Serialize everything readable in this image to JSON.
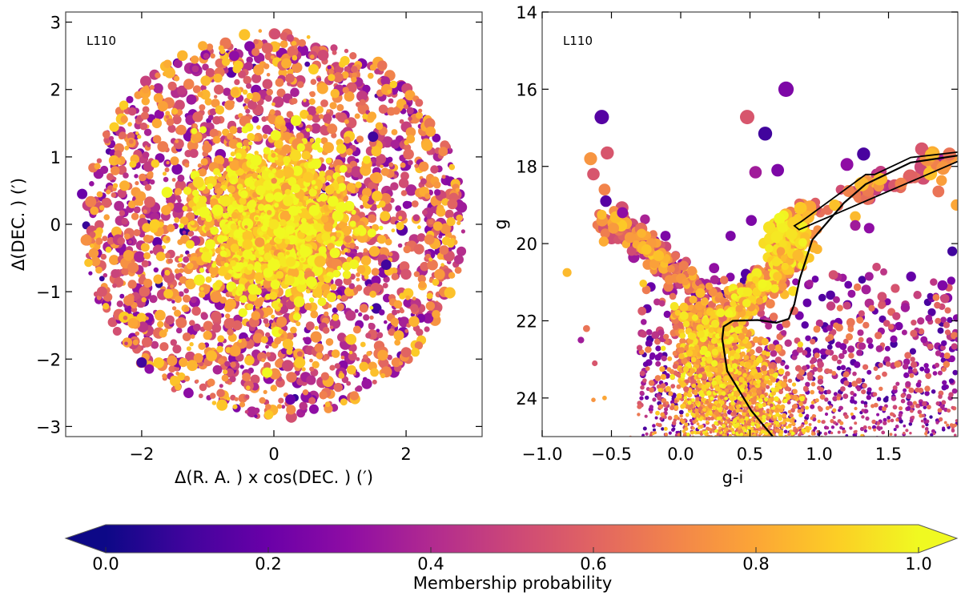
{
  "chart_data": [
    {
      "type": "scatter",
      "panel_label": "L110",
      "xlabel": "Δ(R. A. ) x cos(DEC. ) (′)",
      "ylabel": "Δ(DEC. ) (′)",
      "xlim": [
        -3.15,
        3.15
      ],
      "ylim": [
        -3.15,
        3.15
      ],
      "xticks": [
        "−2",
        "0",
        "2"
      ],
      "xtick_values": [
        -2,
        0,
        2
      ],
      "yticks": [
        "−3",
        "−2",
        "−1",
        "0",
        "1",
        "2",
        "3"
      ],
      "ytick_values": [
        -3,
        -2,
        -1,
        0,
        1,
        2,
        3
      ],
      "grid": false,
      "color_by": "membership probability",
      "point_format": [
        "x",
        "y",
        "p"
      ],
      "points": [
        [
          -2.0,
          -2.05,
          0.1
        ],
        [
          0.25,
          -2.6,
          0.2
        ],
        [
          -0.1,
          -2.2,
          1.0
        ],
        [
          -1.8,
          0.0,
          0.9
        ],
        [
          -2.9,
          0.45,
          0.2
        ],
        [
          1.7,
          -0.6,
          0.1
        ],
        [
          1.5,
          1.3,
          0.1
        ],
        [
          -1.4,
          1.4,
          0.7
        ],
        [
          2.0,
          -1.9,
          0.6
        ],
        [
          -0.6,
          2.5,
          0.3
        ],
        [
          0.6,
          2.3,
          0.9
        ],
        [
          2.7,
          0.3,
          0.6
        ],
        [
          -2.6,
          -1.0,
          0.55
        ],
        [
          0.0,
          0.0,
          0.95
        ],
        [
          0.3,
          0.2,
          1.0
        ],
        [
          -0.4,
          -0.3,
          0.9
        ]
      ]
    },
    {
      "type": "scatter",
      "panel_label": "L110",
      "xlabel": "g-i",
      "ylabel": "g",
      "xlim": [
        -1.0,
        2.0
      ],
      "ylim": [
        25,
        14
      ],
      "y_inverted": true,
      "xticks": [
        "−1.0",
        "−0.5",
        "0.0",
        "0.5",
        "1.0",
        "1.5"
      ],
      "xtick_values": [
        -1.0,
        -0.5,
        0.0,
        0.5,
        1.0,
        1.5
      ],
      "yticks": [
        "14",
        "16",
        "18",
        "20",
        "22",
        "24"
      ],
      "ytick_values": [
        14,
        16,
        18,
        20,
        22,
        24
      ],
      "grid": false,
      "color_by": "membership probability",
      "point_format": [
        "g-i",
        "g",
        "p"
      ],
      "points": [
        [
          -0.57,
          16.72,
          0.15
        ],
        [
          0.76,
          16.0,
          0.25
        ],
        [
          0.48,
          16.72,
          0.55
        ],
        [
          0.61,
          17.15,
          0.1
        ],
        [
          1.32,
          17.68,
          0.12
        ],
        [
          -0.65,
          17.8,
          0.75
        ],
        [
          -0.53,
          17.65,
          0.55
        ],
        [
          -0.63,
          18.2,
          0.55
        ],
        [
          -0.55,
          18.6,
          0.7
        ],
        [
          -0.54,
          18.9,
          0.15
        ],
        [
          0.54,
          18.15,
          0.35
        ],
        [
          0.7,
          18.1,
          0.25
        ],
        [
          1.2,
          17.95,
          0.3
        ],
        [
          1.74,
          17.55,
          0.55
        ],
        [
          1.81,
          17.7,
          0.85
        ],
        [
          1.94,
          17.68,
          0.65
        ],
        [
          1.86,
          18.65,
          0.65
        ],
        [
          1.59,
          18.45,
          0.7
        ],
        [
          1.26,
          19.3,
          0.85
        ],
        [
          1.26,
          19.53,
          0.35
        ],
        [
          -0.42,
          19.2,
          0.3
        ],
        [
          0.51,
          19.4,
          0.25
        ],
        [
          -0.11,
          19.8,
          0.25
        ],
        [
          0.36,
          19.8,
          0.25
        ],
        [
          1.99,
          19.0,
          0.8
        ],
        [
          1.96,
          20.2,
          0.1
        ],
        [
          1.36,
          19.6,
          0.3
        ],
        [
          1.36,
          20.85,
          0.35
        ],
        [
          -0.82,
          20.75,
          0.85
        ],
        [
          -0.72,
          22.5,
          0.35
        ],
        [
          -0.68,
          22.2,
          0.65
        ],
        [
          -0.62,
          23.1,
          0.55
        ],
        [
          -0.55,
          24.0,
          0.8
        ],
        [
          -0.63,
          24.05,
          0.75
        ]
      ],
      "isochrone": [
        [
          0.665,
          25.0
        ],
        [
          0.51,
          24.33
        ],
        [
          0.335,
          23.3
        ],
        [
          0.3,
          22.47
        ],
        [
          0.31,
          22.15
        ],
        [
          0.376,
          22.0
        ],
        [
          0.555,
          21.98
        ],
        [
          0.69,
          22.05
        ],
        [
          0.78,
          21.95
        ],
        [
          0.82,
          21.57
        ],
        [
          0.86,
          20.9
        ],
        [
          0.95,
          19.9
        ],
        [
          1.18,
          18.94
        ],
        [
          1.335,
          18.46
        ],
        [
          1.66,
          17.9
        ],
        [
          2.0,
          17.72
        ]
      ],
      "agb_branch": [
        [
          2.0,
          17.87
        ],
        [
          0.855,
          19.64
        ],
        [
          0.82,
          19.54
        ],
        [
          0.87,
          19.43
        ],
        [
          1.335,
          18.21
        ],
        [
          1.4,
          18.21
        ],
        [
          1.66,
          17.77
        ],
        [
          2.0,
          17.63
        ]
      ]
    }
  ],
  "colorbar": {
    "label": "Membership probability",
    "range": [
      0.0,
      1.0
    ],
    "extend": "both",
    "colormap": "plasma",
    "ticks": [
      "0.0",
      "0.2",
      "0.4",
      "0.6",
      "0.8",
      "1.0"
    ],
    "tick_values": [
      0,
      0.2,
      0.4,
      0.6,
      0.8,
      1.0
    ],
    "stops": [
      "#0d0887",
      "#41049d",
      "#6a00a8",
      "#8f0da4",
      "#b12a90",
      "#cc4778",
      "#e16462",
      "#f2844b",
      "#fca636",
      "#fcce25",
      "#f0f921"
    ]
  }
}
